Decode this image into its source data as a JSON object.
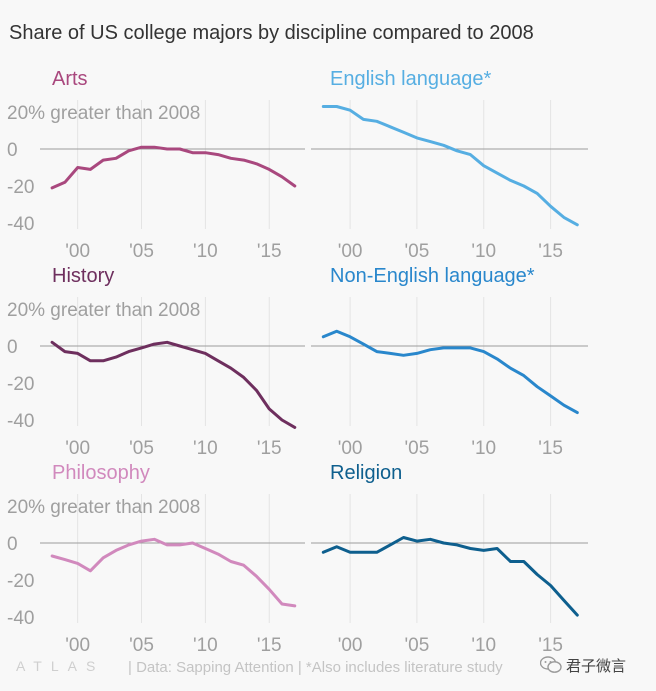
{
  "title": "Share of US college majors by discipline compared to 2008",
  "chart_data": {
    "type": "line",
    "y_tick_labels": [
      "20% greater than 2008",
      "0",
      "-20",
      "-40"
    ],
    "y_ticks": [
      20,
      0,
      -20,
      -40
    ],
    "x_tick_labels": [
      "'00",
      "'05",
      "'10",
      "'15"
    ],
    "x_ticks": [
      2000,
      2005,
      2010,
      2015
    ],
    "xlim": [
      1997.6,
      2017.8
    ],
    "ylim": [
      -42,
      23
    ],
    "panels": [
      {
        "name": "Arts",
        "color": "#a9487e",
        "x": [
          1998,
          1999,
          2000,
          2001,
          2002,
          2003,
          2004,
          2005,
          2006,
          2007,
          2008,
          2009,
          2010,
          2011,
          2012,
          2013,
          2014,
          2015,
          2016,
          2017
        ],
        "values": [
          -21,
          -18,
          -10,
          -11,
          -6,
          -5,
          -1,
          1,
          1,
          0,
          0,
          -2,
          -2,
          -3,
          -5,
          -6,
          -8,
          -11,
          -15,
          -20
        ]
      },
      {
        "name": "English language*",
        "color": "#56aee2",
        "x": [
          1998,
          1999,
          2000,
          2001,
          2002,
          2003,
          2004,
          2005,
          2006,
          2007,
          2008,
          2009,
          2010,
          2011,
          2012,
          2013,
          2014,
          2015,
          2016,
          2017
        ],
        "values": [
          23,
          23,
          21,
          16,
          15,
          12,
          9,
          6,
          4,
          2,
          -1,
          -3,
          -9,
          -13,
          -17,
          -20,
          -24,
          -31,
          -37,
          -41
        ]
      },
      {
        "name": "History",
        "color": "#6e2f5e",
        "x": [
          1998,
          1999,
          2000,
          2001,
          2002,
          2003,
          2004,
          2005,
          2006,
          2007,
          2008,
          2009,
          2010,
          2011,
          2012,
          2013,
          2014,
          2015,
          2016,
          2017
        ],
        "values": [
          2,
          -3,
          -4,
          -8,
          -8,
          -6,
          -3,
          -1,
          1,
          2,
          0,
          -2,
          -4,
          -8,
          -12,
          -17,
          -24,
          -34,
          -40,
          -44
        ]
      },
      {
        "name": "Non-English language*",
        "color": "#2987cc",
        "x": [
          1998,
          1999,
          2000,
          2001,
          2002,
          2003,
          2004,
          2005,
          2006,
          2007,
          2008,
          2009,
          2010,
          2011,
          2012,
          2013,
          2014,
          2015,
          2016,
          2017
        ],
        "values": [
          5,
          8,
          5,
          1,
          -3,
          -4,
          -5,
          -4,
          -2,
          -1,
          -1,
          -1,
          -3,
          -7,
          -12,
          -16,
          -22,
          -27,
          -32,
          -36
        ]
      },
      {
        "name": "Philosophy",
        "color": "#d189bd",
        "x": [
          1998,
          1999,
          2000,
          2001,
          2002,
          2003,
          2004,
          2005,
          2006,
          2007,
          2008,
          2009,
          2010,
          2011,
          2012,
          2013,
          2014,
          2015,
          2016,
          2017
        ],
        "values": [
          -7,
          -9,
          -11,
          -15,
          -8,
          -4,
          -1,
          1,
          2,
          -1,
          -1,
          0,
          -3,
          -6,
          -10,
          -12,
          -18,
          -25,
          -33,
          -34
        ]
      },
      {
        "name": "Religion",
        "color": "#0e5f8e",
        "x": [
          1998,
          1999,
          2000,
          2001,
          2002,
          2003,
          2004,
          2005,
          2006,
          2007,
          2008,
          2009,
          2010,
          2011,
          2012,
          2013,
          2014,
          2015,
          2016,
          2017
        ],
        "values": [
          -5,
          -2,
          -5,
          -5,
          -5,
          -1,
          3,
          1,
          2,
          0,
          -1,
          -3,
          -4,
          -3,
          -10,
          -10,
          -17,
          -23,
          -31,
          -39
        ]
      }
    ]
  },
  "footer": {
    "logo": "ATLAS",
    "source": "| Data: Sapping Attention | *Also includes literature study",
    "watermark": "君子微言"
  }
}
